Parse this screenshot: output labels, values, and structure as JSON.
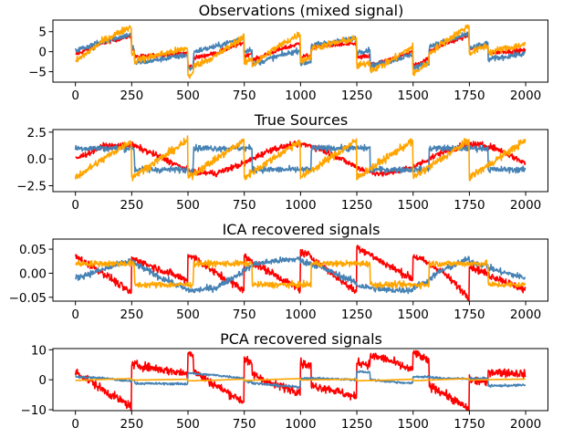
{
  "figure": {
    "colors": {
      "red": "#ff0000",
      "steelblue": "#4682b4",
      "orange": "#ffa500"
    }
  },
  "chart_data": [
    {
      "type": "line",
      "title": "Observations (mixed signal)",
      "xlim": [
        -100,
        2099
      ],
      "ylim": [
        -7.6,
        7.9
      ],
      "xticks": [
        0,
        250,
        500,
        750,
        1000,
        1250,
        1500,
        1750,
        2000
      ],
      "xtick_labels": [
        "0",
        "250",
        "500",
        "750",
        "1000",
        "1250",
        "1500",
        "1750",
        "2000"
      ],
      "yticks": [
        -5,
        0,
        5
      ],
      "ytick_labels": [
        "−5",
        "0",
        "5"
      ],
      "grid": false,
      "x": [
        0,
        125,
        249,
        250,
        261,
        263,
        375,
        499,
        500,
        523,
        525,
        625,
        749,
        750,
        784,
        786,
        875,
        999,
        1000,
        1046,
        1048,
        1125,
        1249,
        1250,
        1308,
        1310,
        1375,
        1499,
        1500,
        1570,
        1572,
        1625,
        1749,
        1750,
        1832,
        1834,
        1875,
        1999
      ],
      "series": [
        {
          "color": "#ff0000",
          "values": [
            -0.73,
            2.19,
            4.01,
            0.55,
            0.65,
            -1.34,
            -0.8,
            -0.34,
            -3.8,
            -3.63,
            -1.61,
            -0.35,
            2.32,
            -1.12,
            -0.28,
            -2.22,
            -0.07,
            2.11,
            -1.34,
            -0.86,
            1.15,
            1.58,
            1.96,
            -1.5,
            -1.15,
            -3.13,
            -2.41,
            -0.05,
            -3.49,
            -1.77,
            0.28,
            1.59,
            4.12,
            0.67,
            1.62,
            -0.37,
            -0.08,
            0.33
          ]
        },
        {
          "color": "#4682b4",
          "values": [
            0.27,
            2.6,
            4.37,
            0.91,
            1.04,
            -2.94,
            -1.9,
            -0.81,
            -4.27,
            -4.02,
            0.0,
            1.32,
            3.52,
            0.07,
            0.73,
            -3.22,
            -1.53,
            0.42,
            -3.03,
            -2.47,
            1.54,
            2.29,
            3.34,
            -0.12,
            0.46,
            -3.52,
            -2.71,
            -0.67,
            -4.11,
            -2.77,
            1.28,
            2.3,
            4.42,
            0.97,
            2.01,
            -1.97,
            -1.54,
            -0.48
          ]
        },
        {
          "color": "#ffa500",
          "values": [
            -2.46,
            2.79,
            6.38,
            -0.54,
            -0.31,
            -2.28,
            -0.7,
            0.85,
            -6.07,
            -5.65,
            -3.61,
            -1.03,
            3.84,
            -3.05,
            -1.55,
            -3.44,
            0.4,
            4.53,
            -2.37,
            -1.33,
            0.69,
            1.87,
            3.3,
            -3.62,
            -2.69,
            -4.65,
            -3.12,
            1.28,
            -5.6,
            -2.54,
            -0.44,
            1.89,
            6.54,
            -0.36,
            1.63,
            -0.34,
            0.38,
            1.85
          ]
        }
      ]
    },
    {
      "type": "line",
      "title": "True Sources",
      "xlim": [
        -100,
        2099
      ],
      "ylim": [
        -3.05,
        2.74
      ],
      "xticks": [
        0,
        250,
        500,
        750,
        1000,
        1250,
        1500,
        1750,
        2000
      ],
      "xtick_labels": [
        "0",
        "250",
        "500",
        "750",
        "1000",
        "1250",
        "1500",
        "1750",
        "2000"
      ],
      "yticks": [
        -2.5,
        0,
        2.5
      ],
      "ytick_labels": [
        "−2.5",
        "0.0",
        "2.5"
      ],
      "grid": false,
      "x": [
        0,
        125,
        249,
        250,
        261,
        263,
        375,
        499,
        500,
        523,
        525,
        625,
        749,
        750,
        784,
        786,
        875,
        999,
        1000,
        1046,
        1048,
        1125,
        1249,
        1250,
        1308,
        1310,
        1375,
        1499,
        1500,
        1570,
        1572,
        1625,
        1749,
        1750,
        1832,
        1834,
        1875,
        1999
      ],
      "series": [
        {
          "color": "#ff0000",
          "values": [
            0,
            1.19,
            1.29,
            1.28,
            1.23,
            1.21,
            0.2,
            -1.06,
            -1.07,
            -1.22,
            -1.23,
            -1.35,
            -0.4,
            -0.39,
            -0.02,
            0.01,
            0.93,
            1.39,
            1.39,
            1.23,
            1.22,
            0.58,
            -0.76,
            -0.77,
            -1.22,
            -1.23,
            -1.41,
            -0.77,
            -0.76,
            -0.01,
            0.01,
            0.59,
            1.4,
            1.4,
            1.22,
            1.2,
            0.92,
            -0.39
          ]
        },
        {
          "color": "#4682b4",
          "values": [
            1,
            1,
            1,
            1,
            1,
            -1,
            -1,
            -1,
            -1,
            -1,
            1,
            1,
            1,
            1,
            1,
            -1,
            -1,
            -1,
            -1,
            -1,
            1,
            1,
            1,
            1,
            1,
            -1,
            -1,
            -1,
            -1,
            -1,
            1,
            1,
            1,
            1,
            1,
            -1,
            -1,
            -1
          ]
        },
        {
          "color": "#ffa500",
          "values": [
            -1.73,
            0,
            1.72,
            -1.73,
            -1.58,
            -1.55,
            0,
            1.72,
            -1.73,
            -1.41,
            -1.38,
            0,
            1.72,
            -1.73,
            -1.26,
            -1.23,
            0,
            1.72,
            -1.73,
            -1.09,
            -1.07,
            0,
            1.72,
            -1.73,
            -0.93,
            -0.9,
            0,
            1.72,
            -1.73,
            -0.76,
            -0.73,
            0,
            1.72,
            -1.73,
            -0.6,
            -0.57,
            0,
            1.72
          ]
        }
      ]
    },
    {
      "type": "line",
      "title": "ICA recovered signals",
      "xlim": [
        -100,
        2099
      ],
      "ylim": [
        -0.058,
        0.071
      ],
      "xticks": [
        0,
        250,
        500,
        750,
        1000,
        1250,
        1500,
        1750,
        2000
      ],
      "xtick_labels": [
        "0",
        "250",
        "500",
        "750",
        "1000",
        "1250",
        "1500",
        "1750",
        "2000"
      ],
      "yticks": [
        -0.05,
        0,
        0.05
      ],
      "ytick_labels": [
        "−0.05",
        "0.00",
        "0.05"
      ],
      "grid": false,
      "x": [
        0,
        125,
        249,
        250,
        261,
        263,
        375,
        499,
        500,
        523,
        525,
        625,
        749,
        750,
        784,
        786,
        875,
        999,
        1000,
        1046,
        1048,
        1125,
        1249,
        1250,
        1308,
        1310,
        1375,
        1499,
        1500,
        1570,
        1572,
        1625,
        1749,
        1750,
        1832,
        1834,
        1875,
        1999
      ],
      "series": [
        {
          "color": "#ff0000",
          "values": [
            0.035,
            0,
            -0.042,
            0.03,
            0.028,
            0.028,
            0.008,
            -0.015,
            0.037,
            0.035,
            0.033,
            0,
            -0.035,
            0.035,
            0.025,
            0.022,
            0,
            -0.035,
            0.045,
            0.035,
            0.033,
            0.005,
            -0.04,
            0.055,
            0.04,
            0.038,
            0.02,
            -0.012,
            0.037,
            0.02,
            0.018,
            0.005,
            -0.05,
            0.015,
            -0.002,
            -0.004,
            -0.01,
            -0.035
          ]
        },
        {
          "color": "#4682b4",
          "values": [
            -0.01,
            0.008,
            0.027,
            0.022,
            0.02,
            0.02,
            -0.008,
            -0.035,
            -0.035,
            -0.036,
            -0.036,
            -0.03,
            0.005,
            0.008,
            0.015,
            0.018,
            0.025,
            0.03,
            0.025,
            0.02,
            0.02,
            0.005,
            -0.02,
            -0.025,
            -0.03,
            -0.03,
            -0.035,
            -0.035,
            -0.03,
            -0.015,
            -0.012,
            0.005,
            0.03,
            0.025,
            0.015,
            0.012,
            0.005,
            -0.01
          ]
        },
        {
          "color": "#ffa500",
          "values": [
            0.02,
            0.02,
            0.02,
            0.02,
            0.02,
            -0.024,
            -0.024,
            -0.024,
            -0.024,
            -0.024,
            0.02,
            0.02,
            0.02,
            0.02,
            0.02,
            -0.024,
            -0.024,
            -0.024,
            -0.024,
            -0.024,
            0.02,
            0.02,
            0.02,
            0.02,
            0.02,
            -0.024,
            -0.024,
            -0.024,
            -0.024,
            -0.024,
            0.02,
            0.02,
            0.02,
            0.02,
            0.02,
            -0.024,
            -0.024,
            -0.024
          ]
        }
      ]
    },
    {
      "type": "line",
      "title": "PCA recovered signals",
      "xlim": [
        -100,
        2099
      ],
      "ylim": [
        -10.3,
        10.4
      ],
      "xticks": [
        0,
        250,
        500,
        750,
        1000,
        1250,
        1500,
        1750,
        2000
      ],
      "xtick_labels": [
        "0",
        "250",
        "500",
        "750",
        "1000",
        "1250",
        "1500",
        "1750",
        "2000"
      ],
      "yticks": [
        -10,
        0,
        10
      ],
      "ytick_labels": [
        "−10",
        "0",
        "10"
      ],
      "grid": false,
      "x": [
        0,
        125,
        249,
        250,
        261,
        263,
        375,
        499,
        500,
        523,
        525,
        625,
        749,
        750,
        784,
        786,
        875,
        999,
        1000,
        1046,
        1048,
        1125,
        1249,
        1250,
        1308,
        1310,
        1375,
        1499,
        1500,
        1570,
        1572,
        1625,
        1749,
        1750,
        1832,
        1834,
        1875,
        1999
      ],
      "series": [
        {
          "color": "#ff0000",
          "values": [
            2.8,
            -3.5,
            -9,
            4.8,
            4.8,
            5,
            3.5,
            2,
            9.3,
            8.5,
            2.8,
            -2,
            -7.4,
            7,
            5,
            2,
            -1.5,
            -4,
            5.6,
            4.5,
            -2,
            -3,
            -6,
            6,
            5,
            8,
            7,
            3,
            9.3,
            6,
            -2,
            -4,
            -10,
            0,
            -1,
            2.8,
            2.5,
            2
          ]
        },
        {
          "color": "#4682b4",
          "values": [
            1,
            0.5,
            -0.5,
            0,
            0,
            -1.2,
            -1.3,
            -1.4,
            2.3,
            2.2,
            2,
            1.5,
            0.5,
            -0.5,
            -0.8,
            -1,
            -1.8,
            -2.5,
            0.5,
            0.5,
            0.5,
            0.3,
            0,
            2.8,
            2.5,
            0,
            -0.5,
            -1.2,
            1,
            1,
            0.8,
            0.5,
            0.3,
            0.5,
            0.4,
            -2,
            -2,
            -1.8
          ]
        },
        {
          "color": "#ffa500",
          "values": [
            -0.26,
            0.12,
            0.39,
            -0.13,
            -0.11,
            -0.11,
            0.02,
            0.15,
            -0.37,
            -0.33,
            -0.33,
            -0.14,
            0.22,
            -0.3,
            -0.19,
            -0.18,
            0.09,
            0.4,
            -0.12,
            -0.04,
            -0.04,
            0.06,
            0.18,
            -0.34,
            -0.26,
            -0.26,
            -0.14,
            0.18,
            -0.34,
            -0.11,
            -0.11,
            0.06,
            0.4,
            -0.12,
            0.03,
            0.03,
            0.09,
            0.22
          ]
        }
      ]
    }
  ]
}
